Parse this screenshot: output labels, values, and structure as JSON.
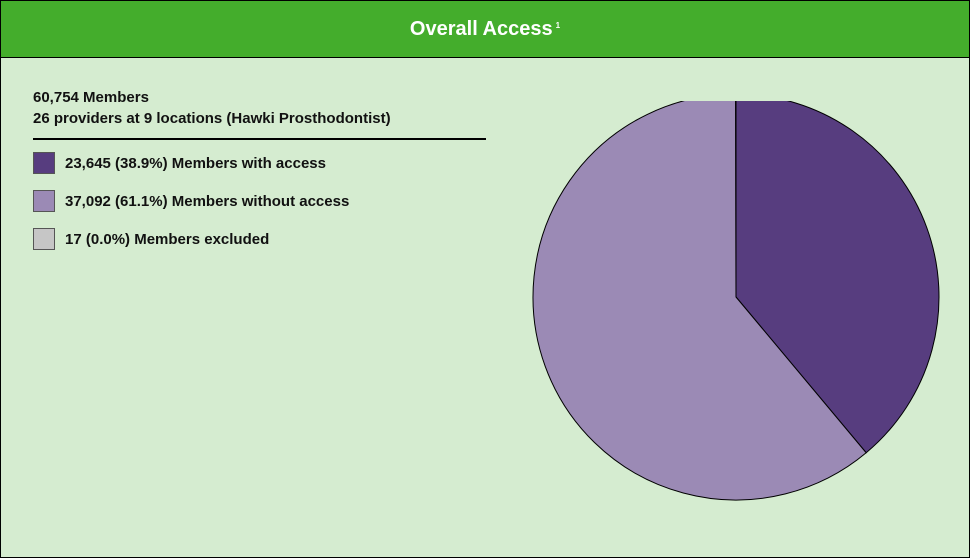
{
  "header": {
    "title": "Overall Access",
    "footnote": "1"
  },
  "summary": {
    "members_line": "60,754 Members",
    "providers_line": "26 providers at 9 locations (Hawki Prosthodontist)"
  },
  "legend": [
    {
      "label": "23,645 (38.9%) Members with access",
      "color": "#573d7f"
    },
    {
      "label": "37,092 (61.1%) Members without access",
      "color": "#9b8ab5"
    },
    {
      "label": "17 (0.0%) Members excluded",
      "color": "#c6c6c6"
    }
  ],
  "chart_data": {
    "type": "pie",
    "categories": [
      "Members with access",
      "Members without access",
      "Members excluded"
    ],
    "values": [
      23645,
      37092,
      17
    ],
    "colors": [
      "#573d7f",
      "#9b8ab5",
      "#c6c6c6"
    ],
    "start_angle": "12 o'clock",
    "direction": "clockwise"
  }
}
